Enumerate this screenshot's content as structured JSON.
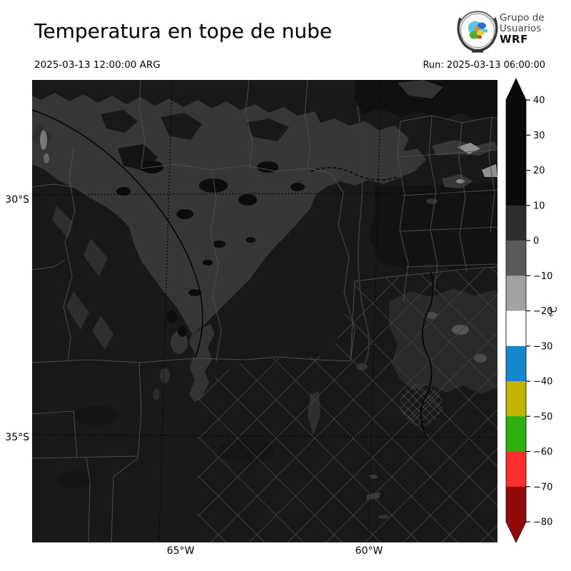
{
  "figure": {
    "title": "Temperatura en tope de nube",
    "valid_time": "2025-03-13 12:00:00 ARG",
    "run": "Run: 2025-03-13 06:00:00"
  },
  "logo": {
    "line1": "Grupo de",
    "line2": "Usuarios",
    "line3": "WRF"
  },
  "axes": {
    "lat_labels": [
      {
        "text": "30°S"
      },
      {
        "text": "35°S"
      }
    ],
    "lon_labels": [
      {
        "text": "65°W"
      },
      {
        "text": "60°W"
      }
    ]
  },
  "colorbar": {
    "unit": "°C",
    "tick_labels": [
      "40",
      "30",
      "20",
      "10",
      "0",
      "−10",
      "−20",
      "−30",
      "−40",
      "−50",
      "−60",
      "−70",
      "−80"
    ],
    "band_colors_top_to_bottom": [
      "#0b0b0b",
      "#0b0b0b",
      "#0b0b0b",
      "#2d2d2d",
      "#5a5a5a",
      "#a2a2a2",
      "#ffffff",
      "#1488ce",
      "#c1b400",
      "#2db10e",
      "#fc2f2f",
      "#930909"
    ],
    "over_arrow_color": "#0b0b0b",
    "under_arrow_color": "#930909"
  },
  "chart_data": {
    "type": "heatmap",
    "title": "Temperatura en tope de nube",
    "valid_time": "2025-03-13 12:00:00 ARG",
    "run_time": "2025-03-13 06:00:00",
    "x_ticks": [
      "65°W",
      "60°W"
    ],
    "y_ticks": [
      "30°S",
      "35°S"
    ],
    "colorbar_unit": "°C",
    "colorbar_ticks": [
      40,
      30,
      20,
      10,
      0,
      -10,
      -20,
      -30,
      -40,
      -50,
      -60,
      -70,
      -80
    ],
    "colorbar_band_colors_top_to_bottom": [
      "#0b0b0b",
      "#2d2d2d",
      "#5a5a5a",
      "#a2a2a2",
      "#ffffff",
      "#1488ce",
      "#c1b400",
      "#2db10e",
      "#fc2f2f",
      "#930909"
    ],
    "colorbar_band_edges": [
      40,
      10,
      0,
      -10,
      -20,
      -30,
      -40,
      -50,
      -60,
      -70,
      -80
    ],
    "legend_position": "right",
    "grid": "dotted graticule at 30S, 35S, 65W, 60W",
    "notes": "Mostly warm (near-black) field with a gray cloud-top band (0..10C) over the northwest and center of the domain; small brighter (-10..-20C) patches near the northeast edge."
  }
}
